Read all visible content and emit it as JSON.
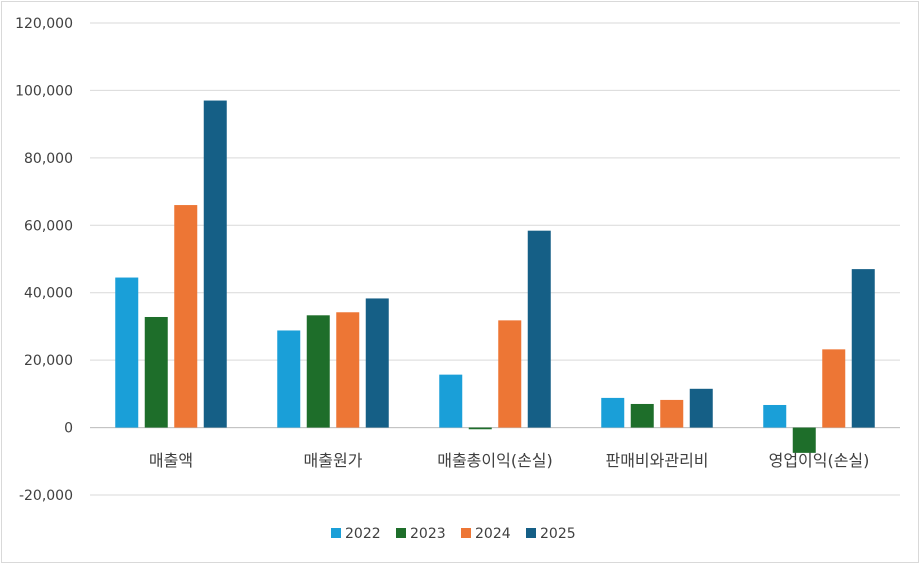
{
  "chart_data": {
    "type": "bar",
    "categories": [
      "매출액",
      "매출원가",
      "매출총이익(손실)",
      "판매비와관리비",
      "영업이익(손실)"
    ],
    "series": [
      {
        "name": "2022",
        "color": "#1a9fd8",
        "values": [
          44500,
          28800,
          15700,
          8800,
          6700
        ]
      },
      {
        "name": "2023",
        "color": "#1e6e2a",
        "values": [
          32800,
          33300,
          -500,
          7000,
          -7500
        ]
      },
      {
        "name": "2024",
        "color": "#ed7635",
        "values": [
          66000,
          34200,
          31800,
          8200,
          23200
        ]
      },
      {
        "name": "2025",
        "color": "#155f86",
        "values": [
          97000,
          38300,
          58400,
          11500,
          47000
        ]
      }
    ],
    "ylim": [
      -20000,
      120000
    ],
    "yticks": [
      -20000,
      0,
      20000,
      40000,
      60000,
      80000,
      100000,
      120000
    ],
    "ytick_labels": [
      "-20,000",
      "0",
      "20,000",
      "40,000",
      "60,000",
      "80,000",
      "100,000",
      "120,000"
    ],
    "grid": true,
    "legend_position": "bottom"
  }
}
